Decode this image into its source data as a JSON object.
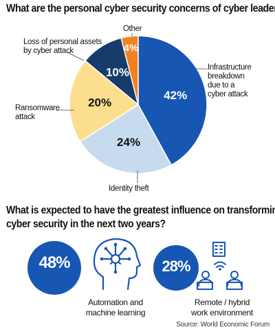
{
  "chart_data": {
    "type": "pie",
    "title": "What are the personal cyber security concerns of cyber leaders?",
    "slices": [
      {
        "label_lines": [
          "Infrastructure",
          "breakdown",
          "due to a",
          "cyber attack"
        ],
        "value": 42,
        "display": "42%",
        "color": "#1756b3"
      },
      {
        "label_lines": [
          "Identity theft"
        ],
        "value": 24,
        "display": "24%",
        "color": "#c7dbef"
      },
      {
        "label_lines": [
          "Ransomware",
          "attack"
        ],
        "value": 20,
        "display": "20%",
        "color": "#fcde8f"
      },
      {
        "label_lines": [
          "Loss of personal assets",
          "by cyber attack"
        ],
        "value": 10,
        "display": "10%",
        "color": "#173c6b"
      },
      {
        "label_lines": [
          "Other"
        ],
        "value": 4,
        "display": "4%",
        "color": "#f28221"
      }
    ]
  },
  "section2": {
    "title_lines": [
      "What is expected to have the greatest influence on transforming",
      "cyber security in the next two years?"
    ],
    "stats": [
      {
        "value": "48%",
        "caption_lines": [
          "Automation and",
          "machine learning"
        ],
        "icon": "head-gear-network-icon"
      },
      {
        "value": "28%",
        "caption_lines": [
          "Remote / hybrid",
          "work environment"
        ],
        "icon": "remote-work-icon"
      }
    ],
    "colors": {
      "accent": "#1756b3"
    }
  },
  "source": "Source: World Economic Forum"
}
